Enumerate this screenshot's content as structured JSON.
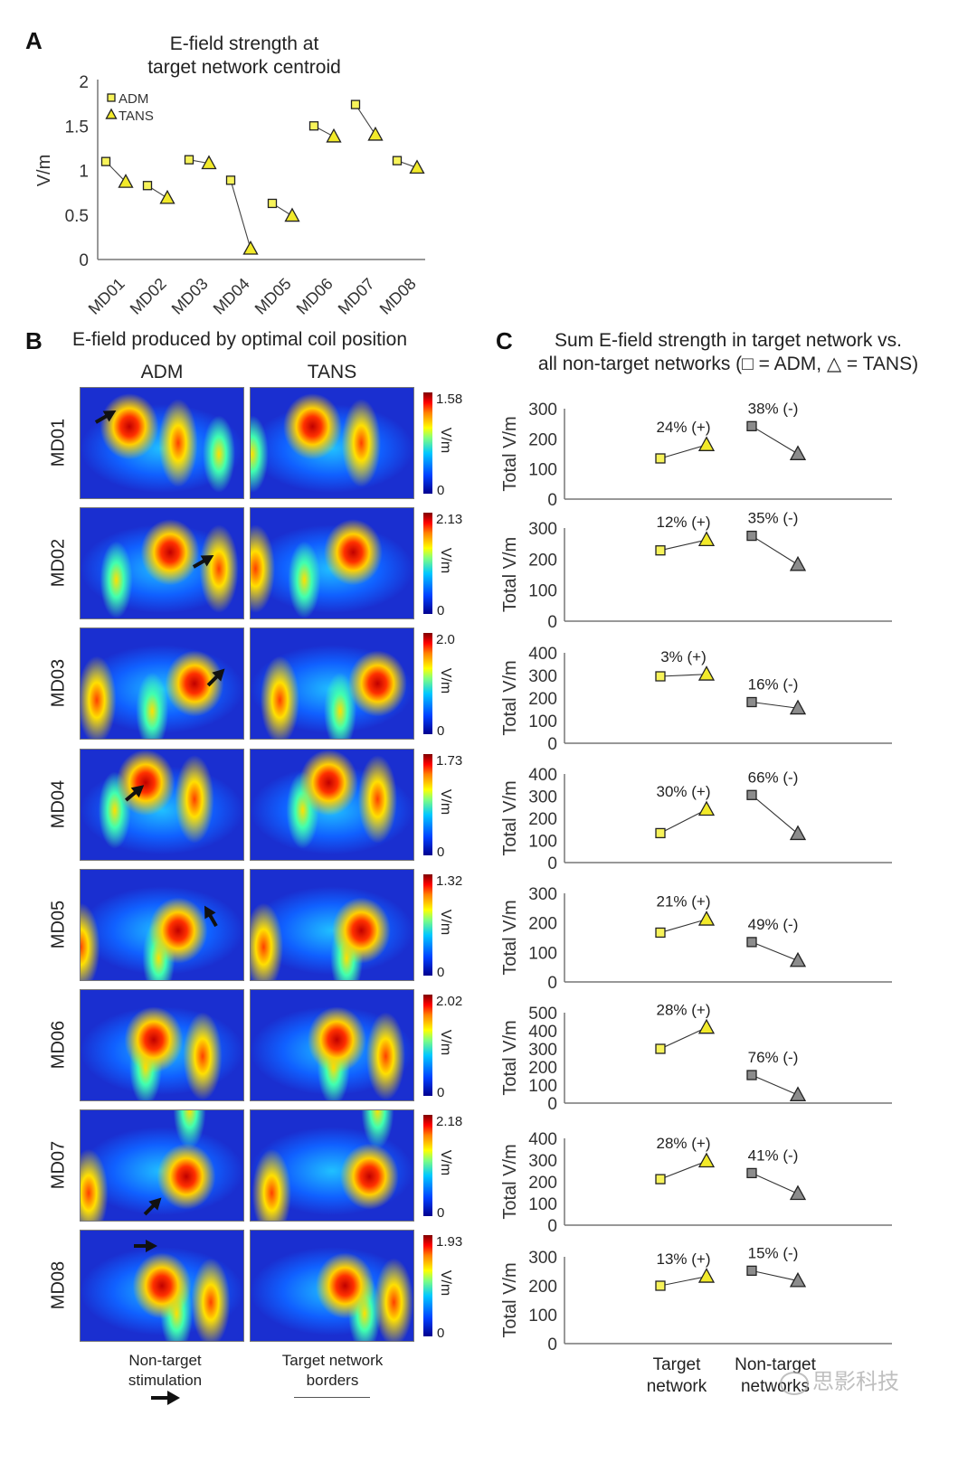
{
  "panel_a": {
    "letter": "A",
    "title_line1": "E-field strength at",
    "title_line2": "target network centroid"
  },
  "panel_b": {
    "letter": "B",
    "title": "E-field produced by optimal coil position",
    "col_headers": [
      "ADM",
      "TANS"
    ],
    "colorbar_unit": "V/m",
    "colorbar_min": "0",
    "rows": [
      {
        "subject": "MD01",
        "cmax": "1.58"
      },
      {
        "subject": "MD02",
        "cmax": "2.13"
      },
      {
        "subject": "MD03",
        "cmax": "2.0"
      },
      {
        "subject": "MD04",
        "cmax": "1.73"
      },
      {
        "subject": "MD05",
        "cmax": "1.32"
      },
      {
        "subject": "MD06",
        "cmax": "2.02"
      },
      {
        "subject": "MD07",
        "cmax": "2.18"
      },
      {
        "subject": "MD08",
        "cmax": "1.93"
      }
    ],
    "legend": {
      "arrow_label_line1": "Non-target",
      "arrow_label_line2": "stimulation",
      "border_label_line1": "Target network",
      "border_label_line2": "borders"
    }
  },
  "panel_c": {
    "letter": "C",
    "title_line1": "Sum E-field strength in target network vs.",
    "title_line2": "all non-target networks (□ = ADM, △ = TANS)"
  },
  "watermark": "思影科技",
  "colors": {
    "adm_target": "#f7f35a",
    "tans_target": "#f2ea2a",
    "nontarget": "#8c8c8c",
    "axis": "#777777"
  },
  "chart_data": [
    {
      "type": "scatter",
      "id": "A",
      "title": "E-field strength at target network centroid",
      "xlabel": "",
      "ylabel": "V/m",
      "categories": [
        "MD01",
        "MD02",
        "MD03",
        "MD04",
        "MD05",
        "MD06",
        "MD07",
        "MD08"
      ],
      "ylim": [
        0,
        2
      ],
      "yticks": [
        "0",
        "0.5",
        "1",
        "1.5",
        "2"
      ],
      "legend": {
        "position": "top-left",
        "entries": [
          "ADM",
          "TANS"
        ]
      },
      "series": [
        {
          "name": "ADM",
          "marker": "square",
          "values": [
            1.1,
            0.83,
            1.12,
            0.89,
            0.63,
            1.5,
            1.74,
            1.11
          ]
        },
        {
          "name": "TANS",
          "marker": "triangle",
          "values": [
            0.87,
            0.69,
            1.08,
            0.12,
            0.49,
            1.38,
            1.4,
            1.03
          ]
        }
      ]
    },
    {
      "type": "line",
      "id": "C",
      "title": "Sum E-field strength in target network vs. all non-target networks",
      "ylabel": "Total V/m",
      "categories": [
        "Target network",
        "Non-target networks"
      ],
      "category_lines": [
        [
          "Target",
          "network"
        ],
        [
          "Non-target",
          "networks"
        ]
      ],
      "subplots": [
        {
          "subject": "MD01",
          "ylim": [
            0,
            300
          ],
          "yticks": [
            "0",
            "100",
            "200",
            "300"
          ],
          "target": {
            "adm": 135,
            "tans": 180,
            "label": "24% (+)"
          },
          "nontarget": {
            "adm": 242,
            "tans": 150,
            "label": "38% (-)"
          }
        },
        {
          "subject": "MD02",
          "ylim": [
            0,
            300
          ],
          "yticks": [
            "0",
            "100",
            "200",
            "300"
          ],
          "target": {
            "adm": 228,
            "tans": 262,
            "label": "12% (+)"
          },
          "nontarget": {
            "adm": 275,
            "tans": 182,
            "label": "35% (-)"
          }
        },
        {
          "subject": "MD03",
          "ylim": [
            0,
            400
          ],
          "yticks": [
            "0",
            "100",
            "200",
            "300",
            "400"
          ],
          "target": {
            "adm": 296,
            "tans": 305,
            "label": "3% (+)"
          },
          "nontarget": {
            "adm": 182,
            "tans": 155,
            "label": "16% (-)"
          }
        },
        {
          "subject": "MD04",
          "ylim": [
            0,
            400
          ],
          "yticks": [
            "0",
            "100",
            "200",
            "300",
            "400"
          ],
          "target": {
            "adm": 133,
            "tans": 240,
            "label": "30% (+)"
          },
          "nontarget": {
            "adm": 305,
            "tans": 130,
            "label": "66% (-)"
          }
        },
        {
          "subject": "MD05",
          "ylim": [
            0,
            300
          ],
          "yticks": [
            "0",
            "100",
            "200",
            "300"
          ],
          "target": {
            "adm": 167,
            "tans": 212,
            "label": "21% (+)"
          },
          "nontarget": {
            "adm": 135,
            "tans": 72,
            "label": "49% (-)"
          }
        },
        {
          "subject": "MD06",
          "ylim": [
            0,
            500
          ],
          "yticks": [
            "0",
            "100",
            "200",
            "300",
            "400",
            "500"
          ],
          "target": {
            "adm": 300,
            "tans": 418,
            "label": "28% (+)"
          },
          "nontarget": {
            "adm": 155,
            "tans": 45,
            "label": "76% (-)"
          }
        },
        {
          "subject": "MD07",
          "ylim": [
            0,
            400
          ],
          "yticks": [
            "0",
            "100",
            "200",
            "300",
            "400"
          ],
          "target": {
            "adm": 212,
            "tans": 295,
            "label": "28% (+)"
          },
          "nontarget": {
            "adm": 240,
            "tans": 145,
            "label": "41% (-)"
          }
        },
        {
          "subject": "MD08",
          "ylim": [
            0,
            300
          ],
          "yticks": [
            "0",
            "100",
            "200",
            "300"
          ],
          "target": {
            "adm": 200,
            "tans": 232,
            "label": "13% (+)"
          },
          "nontarget": {
            "adm": 252,
            "tans": 217,
            "label": "15% (-)"
          }
        }
      ]
    }
  ]
}
